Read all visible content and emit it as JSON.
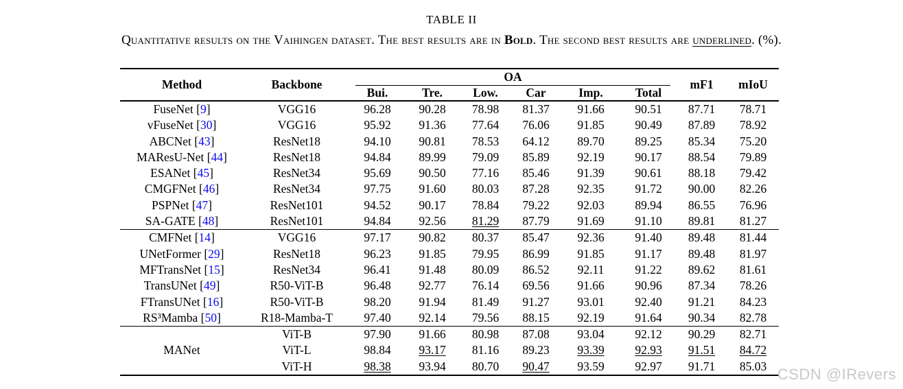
{
  "colors": {
    "citation": "#0b0bee",
    "watermark": "#c8c8c8",
    "text": "#000000"
  },
  "title": "TABLE II",
  "caption": {
    "segments": [
      {
        "text": "Quantitative results on the Vaihingen dataset. The best results are in ",
        "style": "normal"
      },
      {
        "text": "Bold",
        "style": "bold"
      },
      {
        "text": ". The second best results are ",
        "style": "normal"
      },
      {
        "text": "underlined",
        "style": "underline"
      },
      {
        "text": ". (%).",
        "style": "normal"
      }
    ]
  },
  "watermark": "CSDN @IRevers",
  "table": {
    "citation_brackets": [
      "[",
      "]"
    ],
    "header": {
      "method": "Method",
      "backbone": "Backbone",
      "oa": "OA",
      "oa_sub": [
        "Bui.",
        "Tre.",
        "Low.",
        "Car",
        "Imp.",
        "Total"
      ],
      "mf1": "mF1",
      "miou": "mIoU"
    },
    "groups": [
      {
        "rows": [
          {
            "method": {
              "name": "FuseNet",
              "ref": "9"
            },
            "backbone": "VGG16",
            "cells": [
              [
                "96.28",
                ""
              ],
              [
                "90.28",
                ""
              ],
              [
                "78.98",
                ""
              ],
              [
                "81.37",
                ""
              ],
              [
                "91.66",
                ""
              ],
              [
                "90.51",
                ""
              ],
              [
                "87.71",
                ""
              ],
              [
                "78.71",
                ""
              ]
            ]
          },
          {
            "method": {
              "name": "vFuseNet",
              "ref": "30"
            },
            "backbone": "VGG16",
            "cells": [
              [
                "95.92",
                ""
              ],
              [
                "91.36",
                ""
              ],
              [
                "77.64",
                ""
              ],
              [
                "76.06",
                ""
              ],
              [
                "91.85",
                ""
              ],
              [
                "90.49",
                ""
              ],
              [
                "87.89",
                ""
              ],
              [
                "78.92",
                ""
              ]
            ]
          },
          {
            "method": {
              "name": "ABCNet",
              "ref": "43"
            },
            "backbone": "ResNet18",
            "cells": [
              [
                "94.10",
                ""
              ],
              [
                "90.81",
                ""
              ],
              [
                "78.53",
                ""
              ],
              [
                "64.12",
                ""
              ],
              [
                "89.70",
                ""
              ],
              [
                "89.25",
                ""
              ],
              [
                "85.34",
                ""
              ],
              [
                "75.20",
                ""
              ]
            ]
          },
          {
            "method": {
              "name": "MAResU-Net",
              "ref": "44"
            },
            "backbone": "ResNet18",
            "cells": [
              [
                "94.84",
                ""
              ],
              [
                "89.99",
                ""
              ],
              [
                "79.09",
                ""
              ],
              [
                "85.89",
                ""
              ],
              [
                "92.19",
                ""
              ],
              [
                "90.17",
                ""
              ],
              [
                "88.54",
                ""
              ],
              [
                "79.89",
                ""
              ]
            ]
          },
          {
            "method": {
              "name": "ESANet",
              "ref": "45"
            },
            "backbone": "ResNet34",
            "cells": [
              [
                "95.69",
                ""
              ],
              [
                "90.50",
                ""
              ],
              [
                "77.16",
                ""
              ],
              [
                "85.46",
                ""
              ],
              [
                "91.39",
                ""
              ],
              [
                "90.61",
                ""
              ],
              [
                "88.18",
                ""
              ],
              [
                "79.42",
                ""
              ]
            ]
          },
          {
            "method": {
              "name": "CMGFNet",
              "ref": "46"
            },
            "backbone": "ResNet34",
            "cells": [
              [
                "97.75",
                ""
              ],
              [
                "91.60",
                ""
              ],
              [
                "80.03",
                ""
              ],
              [
                "87.28",
                ""
              ],
              [
                "92.35",
                ""
              ],
              [
                "91.72",
                ""
              ],
              [
                "90.00",
                ""
              ],
              [
                "82.26",
                ""
              ]
            ]
          },
          {
            "method": {
              "name": "PSPNet",
              "ref": "47"
            },
            "backbone": "ResNet101",
            "cells": [
              [
                "94.52",
                ""
              ],
              [
                "90.17",
                ""
              ],
              [
                "78.84",
                ""
              ],
              [
                "79.22",
                ""
              ],
              [
                "92.03",
                ""
              ],
              [
                "89.94",
                ""
              ],
              [
                "86.55",
                ""
              ],
              [
                "76.96",
                ""
              ]
            ]
          },
          {
            "method": {
              "name": "SA-GATE",
              "ref": "48"
            },
            "backbone": "ResNet101",
            "cells": [
              [
                "94.84",
                ""
              ],
              [
                "92.56",
                ""
              ],
              [
                "81.29",
                "u"
              ],
              [
                "87.79",
                ""
              ],
              [
                "91.69",
                ""
              ],
              [
                "91.10",
                ""
              ],
              [
                "89.81",
                ""
              ],
              [
                "81.27",
                ""
              ]
            ]
          }
        ]
      },
      {
        "rows": [
          {
            "method": {
              "name": "CMFNet",
              "ref": "14"
            },
            "backbone": "VGG16",
            "cells": [
              [
                "97.17",
                ""
              ],
              [
                "90.82",
                ""
              ],
              [
                "80.37",
                ""
              ],
              [
                "85.47",
                ""
              ],
              [
                "92.36",
                ""
              ],
              [
                "91.40",
                ""
              ],
              [
                "89.48",
                ""
              ],
              [
                "81.44",
                ""
              ]
            ]
          },
          {
            "method": {
              "name": "UNetFormer",
              "ref": "29"
            },
            "backbone": "ResNet18",
            "cells": [
              [
                "96.23",
                ""
              ],
              [
                "91.85",
                ""
              ],
              [
                "79.95",
                ""
              ],
              [
                "86.99",
                ""
              ],
              [
                "91.85",
                ""
              ],
              [
                "91.17",
                ""
              ],
              [
                "89.48",
                ""
              ],
              [
                "81.97",
                ""
              ]
            ]
          },
          {
            "method": {
              "name": "MFTransNet",
              "ref": "15"
            },
            "backbone": "ResNet34",
            "cells": [
              [
                "96.41",
                ""
              ],
              [
                "91.48",
                ""
              ],
              [
                "80.09",
                ""
              ],
              [
                "86.52",
                ""
              ],
              [
                "92.11",
                ""
              ],
              [
                "91.22",
                ""
              ],
              [
                "89.62",
                ""
              ],
              [
                "81.61",
                ""
              ]
            ]
          },
          {
            "method": {
              "name": "TransUNet",
              "ref": "49"
            },
            "backbone": "R50-ViT-B",
            "cells": [
              [
                "96.48",
                ""
              ],
              [
                "92.77",
                ""
              ],
              [
                "76.14",
                ""
              ],
              [
                "69.56",
                ""
              ],
              [
                "91.66",
                ""
              ],
              [
                "90.96",
                ""
              ],
              [
                "87.34",
                ""
              ],
              [
                "78.26",
                ""
              ]
            ]
          },
          {
            "method": {
              "name": "FTransUNet",
              "ref": "16"
            },
            "backbone": "R50-ViT-B",
            "cells": [
              [
                "98.20",
                ""
              ],
              [
                "91.94",
                ""
              ],
              [
                "81.49",
                "b"
              ],
              [
                "91.27",
                "b"
              ],
              [
                "93.01",
                ""
              ],
              [
                "92.40",
                ""
              ],
              [
                "91.21",
                ""
              ],
              [
                "84.23",
                ""
              ]
            ]
          },
          {
            "method": {
              "name": "RS³Mamba",
              "ref": "50"
            },
            "backbone": "R18-Mamba-T",
            "cells": [
              [
                "97.40",
                ""
              ],
              [
                "92.14",
                ""
              ],
              [
                "79.56",
                ""
              ],
              [
                "88.15",
                ""
              ],
              [
                "92.19",
                ""
              ],
              [
                "91.64",
                ""
              ],
              [
                "90.34",
                ""
              ],
              [
                "82.78",
                ""
              ]
            ]
          }
        ]
      },
      {
        "method_rowspan": {
          "name": "MANet",
          "ref": null
        },
        "rows": [
          {
            "backbone": "ViT-B",
            "cells": [
              [
                "97.90",
                ""
              ],
              [
                "91.66",
                ""
              ],
              [
                "80.98",
                ""
              ],
              [
                "87.08",
                ""
              ],
              [
                "93.04",
                ""
              ],
              [
                "92.12",
                ""
              ],
              [
                "90.29",
                ""
              ],
              [
                "82.71",
                ""
              ]
            ]
          },
          {
            "backbone": "ViT-L",
            "cells": [
              [
                "98.84",
                "b"
              ],
              [
                "93.17",
                "u"
              ],
              [
                "81.16",
                ""
              ],
              [
                "89.23",
                ""
              ],
              [
                "93.39",
                "u"
              ],
              [
                "92.93",
                "u"
              ],
              [
                "91.51",
                "u"
              ],
              [
                "84.72",
                "u"
              ]
            ]
          },
          {
            "backbone": "ViT-H",
            "cells": [
              [
                "98.38",
                "u"
              ],
              [
                "93.94",
                "b"
              ],
              [
                "80.70",
                ""
              ],
              [
                "90.47",
                "u"
              ],
              [
                "93.59",
                "b"
              ],
              [
                "92.97",
                "b"
              ],
              [
                "91.71",
                "b"
              ],
              [
                "85.03",
                "b"
              ]
            ]
          }
        ]
      }
    ]
  }
}
